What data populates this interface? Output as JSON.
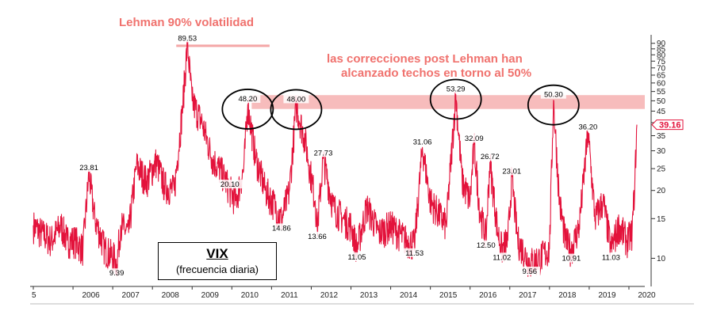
{
  "chart_data": {
    "type": "line",
    "series_name": "VIX",
    "subtitle": "(frecuencia diaria)",
    "color": "#e3123b",
    "highlight_color": "#f4a6a6",
    "yscale": "log",
    "ylim": [
      7.5,
      92
    ],
    "yticks": [
      10,
      15,
      20,
      25,
      30,
      35,
      40,
      45,
      50,
      55,
      60,
      65,
      70,
      75,
      80,
      85,
      90
    ],
    "xticks": [
      "5",
      "2006",
      "2007",
      "2008",
      "2009",
      "2010",
      "2011",
      "2012",
      "2013",
      "2014",
      "2015",
      "2016",
      "2017",
      "2018",
      "2019",
      "2020"
    ],
    "x_range": [
      2005.0,
      2020.4
    ],
    "anchors": [
      [
        2005.0,
        14
      ],
      [
        2005.2,
        13
      ],
      [
        2005.45,
        12
      ],
      [
        2005.7,
        14
      ],
      [
        2005.85,
        12
      ],
      [
        2006.05,
        12
      ],
      [
        2006.25,
        11
      ],
      [
        2006.4,
        23.81
      ],
      [
        2006.55,
        15
      ],
      [
        2006.8,
        11
      ],
      [
        2007.05,
        10
      ],
      [
        2007.1,
        9.39
      ],
      [
        2007.2,
        14
      ],
      [
        2007.4,
        13
      ],
      [
        2007.6,
        26
      ],
      [
        2007.85,
        22
      ],
      [
        2008.1,
        27
      ],
      [
        2008.3,
        21
      ],
      [
        2008.55,
        20
      ],
      [
        2008.75,
        45
      ],
      [
        2008.88,
        89.53
      ],
      [
        2009.0,
        50
      ],
      [
        2009.25,
        40
      ],
      [
        2009.5,
        28
      ],
      [
        2009.75,
        24
      ],
      [
        2009.95,
        20.1
      ],
      [
        2010.1,
        18
      ],
      [
        2010.3,
        25
      ],
      [
        2010.4,
        48.2
      ],
      [
        2010.6,
        28
      ],
      [
        2010.85,
        20
      ],
      [
        2011.1,
        17
      ],
      [
        2011.25,
        14.86
      ],
      [
        2011.45,
        20
      ],
      [
        2011.62,
        48.0
      ],
      [
        2011.85,
        33
      ],
      [
        2012.1,
        18
      ],
      [
        2012.15,
        13.66
      ],
      [
        2012.3,
        27.73
      ],
      [
        2012.55,
        17
      ],
      [
        2012.8,
        15
      ],
      [
        2013.0,
        14
      ],
      [
        2013.15,
        11.05
      ],
      [
        2013.4,
        17
      ],
      [
        2013.7,
        13
      ],
      [
        2014.0,
        14
      ],
      [
        2014.4,
        12
      ],
      [
        2014.6,
        11.53
      ],
      [
        2014.8,
        31.06
      ],
      [
        2015.0,
        18
      ],
      [
        2015.4,
        14
      ],
      [
        2015.64,
        53.29
      ],
      [
        2015.8,
        22
      ],
      [
        2016.0,
        18
      ],
      [
        2016.1,
        32.09
      ],
      [
        2016.25,
        16
      ],
      [
        2016.4,
        12.5
      ],
      [
        2016.5,
        26.72
      ],
      [
        2016.7,
        13
      ],
      [
        2016.8,
        11.02
      ],
      [
        2016.95,
        12
      ],
      [
        2017.05,
        23.01
      ],
      [
        2017.2,
        12
      ],
      [
        2017.5,
        9.56
      ],
      [
        2017.75,
        10
      ],
      [
        2018.0,
        11
      ],
      [
        2018.1,
        50.3
      ],
      [
        2018.25,
        18
      ],
      [
        2018.4,
        12
      ],
      [
        2018.55,
        10.91
      ],
      [
        2018.75,
        14
      ],
      [
        2018.97,
        36.2
      ],
      [
        2019.15,
        15
      ],
      [
        2019.35,
        18
      ],
      [
        2019.55,
        11.03
      ],
      [
        2019.75,
        14
      ],
      [
        2019.95,
        12
      ],
      [
        2020.08,
        13
      ],
      [
        2020.15,
        22
      ],
      [
        2020.2,
        39.16
      ]
    ],
    "data_labels": [
      {
        "x": 2006.4,
        "y": 23.81,
        "text": "23.81"
      },
      {
        "x": 2007.1,
        "y": 9.39,
        "text": "9.39"
      },
      {
        "x": 2008.88,
        "y": 89.53,
        "text": "89.53"
      },
      {
        "x": 2009.95,
        "y": 20.1,
        "text": "20.10"
      },
      {
        "x": 2010.4,
        "y": 48.2,
        "text": "48.20"
      },
      {
        "x": 2011.25,
        "y": 14.86,
        "text": "14.86"
      },
      {
        "x": 2011.62,
        "y": 48.0,
        "text": "48.00"
      },
      {
        "x": 2012.15,
        "y": 13.66,
        "text": "13.66"
      },
      {
        "x": 2012.3,
        "y": 27.73,
        "text": "27.73"
      },
      {
        "x": 2013.15,
        "y": 11.05,
        "text": "11.05"
      },
      {
        "x": 2014.6,
        "y": 11.53,
        "text": "11.53"
      },
      {
        "x": 2014.8,
        "y": 31.06,
        "text": "31.06"
      },
      {
        "x": 2015.64,
        "y": 53.29,
        "text": "53.29"
      },
      {
        "x": 2016.1,
        "y": 32.09,
        "text": "32.09"
      },
      {
        "x": 2016.4,
        "y": 12.5,
        "text": "12.50"
      },
      {
        "x": 2016.5,
        "y": 26.72,
        "text": "26.72"
      },
      {
        "x": 2016.8,
        "y": 11.02,
        "text": "11.02"
      },
      {
        "x": 2017.05,
        "y": 23.01,
        "text": "23.01"
      },
      {
        "x": 2017.5,
        "y": 9.56,
        "text": "9.56"
      },
      {
        "x": 2018.1,
        "y": 50.3,
        "text": "50.30"
      },
      {
        "x": 2018.55,
        "y": 10.91,
        "text": "10.91"
      },
      {
        "x": 2018.97,
        "y": 36.2,
        "text": "36.20"
      },
      {
        "x": 2019.55,
        "y": 11.03,
        "text": "11.03"
      }
    ],
    "last_value": {
      "y": 39.16,
      "text": "39.16"
    },
    "circled_peaks": [
      48.2,
      48.0,
      53.29,
      50.3
    ],
    "highlight_band": [
      46,
      53
    ],
    "lehman_line_level": 89.53
  },
  "annotations": {
    "lehman_title": "Lehman 90% volatilidad",
    "note_line1": "las correcciones post Lehman han",
    "note_line2": "alcanzado techos en torno al 50%"
  },
  "legend": {
    "name": "VIX",
    "subtitle": "(frecuencia diaria)"
  }
}
